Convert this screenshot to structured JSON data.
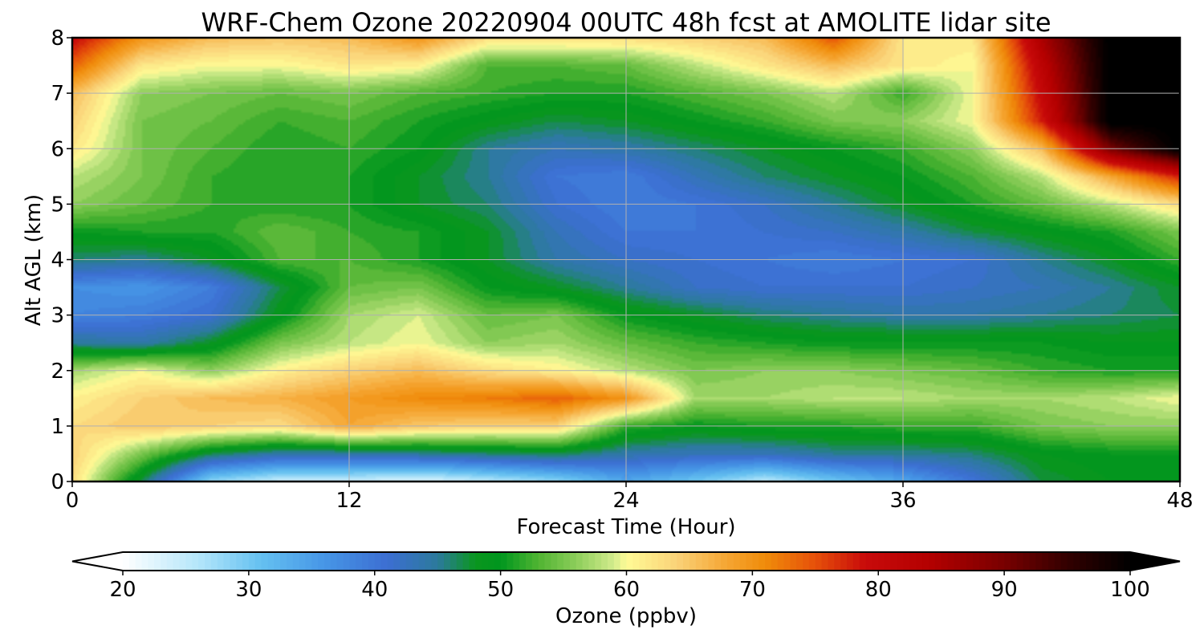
{
  "chart_data": {
    "type": "heatmap",
    "title": "WRF-Chem Ozone  20220904 00UTC 48h fcst at AMOLITE lidar site",
    "xlabel": "Forecast Time (Hour)",
    "ylabel": "Alt AGL (km)",
    "xlim": [
      0,
      48
    ],
    "ylim": [
      0,
      8
    ],
    "x_ticks": [
      0,
      12,
      24,
      36,
      48
    ],
    "y_ticks": [
      0,
      1,
      2,
      3,
      4,
      5,
      6,
      7,
      8
    ],
    "grid": true,
    "x": [
      0,
      3,
      6,
      9,
      12,
      15,
      18,
      21,
      24,
      27,
      30,
      33,
      36,
      39,
      42,
      45,
      48
    ],
    "y": [
      0,
      0.5,
      1,
      1.5,
      2,
      2.5,
      3,
      3.5,
      4,
      4.5,
      5,
      5.5,
      6,
      6.5,
      7,
      7.5,
      8
    ],
    "z": [
      [
        63,
        47,
        28,
        24,
        24,
        22,
        25,
        28,
        34,
        30,
        25,
        30,
        34,
        40,
        47,
        49,
        49
      ],
      [
        64,
        55,
        47,
        44,
        44,
        45,
        46,
        47,
        44,
        43,
        43,
        45,
        45,
        46,
        49,
        50,
        50
      ],
      [
        63,
        65,
        64,
        63,
        68,
        65,
        64,
        64,
        52,
        50,
        51,
        51,
        52,
        52,
        55,
        56,
        56
      ],
      [
        61,
        64,
        66,
        67,
        69,
        71,
        72,
        74,
        70,
        57,
        57,
        58,
        58,
        57,
        57,
        58,
        60
      ],
      [
        57,
        60,
        56,
        61,
        64,
        66,
        63,
        61,
        58,
        55,
        56,
        56,
        55,
        54,
        52,
        51,
        51
      ],
      [
        45,
        44,
        48,
        55,
        58,
        60,
        56,
        57,
        54,
        52,
        51,
        50,
        50,
        50,
        50,
        49,
        49
      ],
      [
        38,
        39,
        41,
        49,
        57,
        59,
        54,
        55,
        50,
        48,
        46,
        45,
        44,
        44,
        45,
        46,
        47
      ],
      [
        37,
        36,
        39,
        47,
        54,
        55,
        50,
        48,
        45,
        42,
        41,
        41,
        41,
        42,
        43,
        45,
        48
      ],
      [
        46,
        45,
        48,
        53,
        53,
        51,
        48,
        44,
        42,
        41,
        40,
        39,
        40,
        41,
        45,
        48,
        52
      ],
      [
        50,
        51,
        51,
        54,
        52,
        51,
        48,
        43,
        40,
        40,
        41,
        42,
        44,
        47,
        49,
        51,
        55
      ],
      [
        56,
        54,
        52,
        51,
        51,
        48,
        46,
        41,
        39,
        40,
        42,
        45,
        48,
        51,
        54,
        58,
        63
      ],
      [
        58,
        55,
        52,
        51,
        51,
        48,
        45,
        40,
        39,
        43,
        46,
        48,
        50,
        53,
        58,
        68,
        78
      ],
      [
        62,
        55,
        53,
        51,
        52,
        50,
        45,
        43,
        44,
        46,
        48,
        50,
        52,
        56,
        66,
        90,
        101
      ],
      [
        64,
        55,
        54,
        52,
        53,
        51,
        49,
        47,
        48,
        50,
        52,
        55,
        56,
        60,
        78,
        101,
        101
      ],
      [
        66,
        56,
        55,
        54,
        55,
        53,
        52,
        51,
        51,
        53,
        55,
        58,
        52,
        60,
        80,
        101,
        101
      ],
      [
        74,
        62,
        60,
        60,
        62,
        61,
        53,
        53,
        54,
        58,
        62,
        66,
        62,
        60,
        82,
        101,
        101
      ],
      [
        80,
        70,
        66,
        65,
        66,
        70,
        63,
        63,
        63,
        64,
        66,
        75,
        62,
        62,
        85,
        101,
        101
      ]
    ],
    "colorbar": {
      "label": "Ozone  (ppbv)",
      "min": 20,
      "max": 100,
      "ticks": [
        20,
        30,
        40,
        50,
        60,
        70,
        80,
        90,
        100
      ],
      "extend": "both",
      "orientation": "horizontal",
      "placement": "bottom",
      "colormap": [
        [
          20,
          "#ffffff"
        ],
        [
          26,
          "#b4e6fa"
        ],
        [
          31,
          "#64c0f0"
        ],
        [
          36,
          "#4696e6"
        ],
        [
          41,
          "#3c6ed2"
        ],
        [
          45,
          "#2c7a9c"
        ],
        [
          48,
          "#0a961e"
        ],
        [
          50,
          "#00961e"
        ],
        [
          53,
          "#50b432"
        ],
        [
          56,
          "#8ccd5a"
        ],
        [
          59,
          "#d2ec8c"
        ],
        [
          60,
          "#fffb96"
        ],
        [
          64,
          "#fad278"
        ],
        [
          68,
          "#f5a532"
        ],
        [
          71,
          "#f08c0a"
        ],
        [
          75,
          "#e6500a"
        ],
        [
          79,
          "#c80a0a"
        ],
        [
          84,
          "#b40000"
        ],
        [
          90,
          "#780000"
        ],
        [
          95,
          "#320000"
        ],
        [
          100,
          "#000000"
        ]
      ]
    }
  }
}
